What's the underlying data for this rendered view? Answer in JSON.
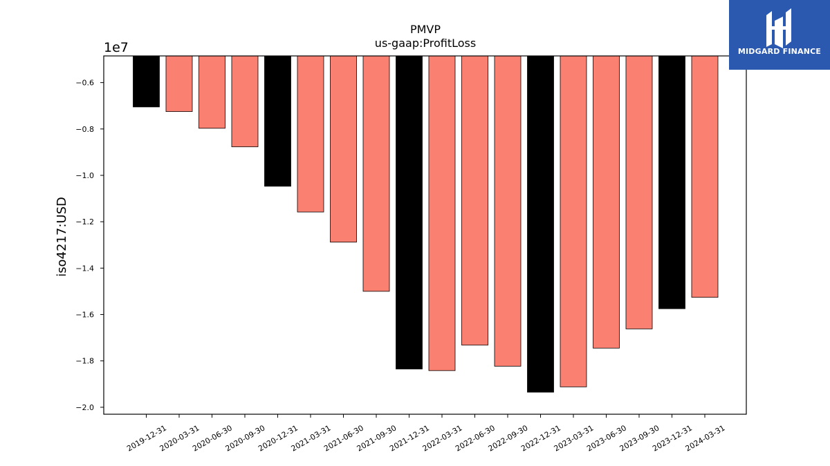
{
  "chart_data": {
    "type": "bar",
    "title": "PMVP",
    "subtitle": "us-gaap:ProfitLoss",
    "ylabel": "iso4217:USD",
    "xlabel": "",
    "offset_text": "1e7",
    "categories": [
      "2019-12-31",
      "2020-03-31",
      "2020-06-30",
      "2020-09-30",
      "2020-12-31",
      "2021-03-31",
      "2021-06-30",
      "2021-09-30",
      "2021-12-31",
      "2022-03-31",
      "2022-06-30",
      "2022-09-30",
      "2022-12-31",
      "2023-03-31",
      "2023-06-30",
      "2023-09-30",
      "2023-12-31",
      "2024-03-31"
    ],
    "values": [
      -0.705,
      -0.725,
      -0.797,
      -0.877,
      -1.047,
      -1.158,
      -1.288,
      -1.5,
      -1.835,
      -1.842,
      -1.732,
      -1.823,
      -1.935,
      -1.912,
      -1.745,
      -1.662,
      -1.575,
      -1.526
    ],
    "value_scale": 10000000,
    "bar_colors": [
      "#000000",
      "#fa8072",
      "#fa8072",
      "#fa8072",
      "#000000",
      "#fa8072",
      "#fa8072",
      "#fa8072",
      "#000000",
      "#fa8072",
      "#fa8072",
      "#fa8072",
      "#000000",
      "#fa8072",
      "#fa8072",
      "#fa8072",
      "#000000",
      "#fa8072"
    ],
    "ylim": [
      -2.03,
      -0.485
    ],
    "yticks": [
      -0.6,
      -0.8,
      -1.0,
      -1.2,
      -1.4,
      -1.6,
      -1.8,
      -2.0
    ],
    "ytick_labels": [
      "−0.6",
      "−0.8",
      "−1.0",
      "−1.2",
      "−1.4",
      "−1.6",
      "−1.8",
      "−2.0"
    ],
    "grid": false,
    "legend": "none"
  },
  "logo": {
    "text": "MIDGARD FINANCE",
    "icon": "midgard-logo-icon",
    "background": "#2b59b0"
  }
}
